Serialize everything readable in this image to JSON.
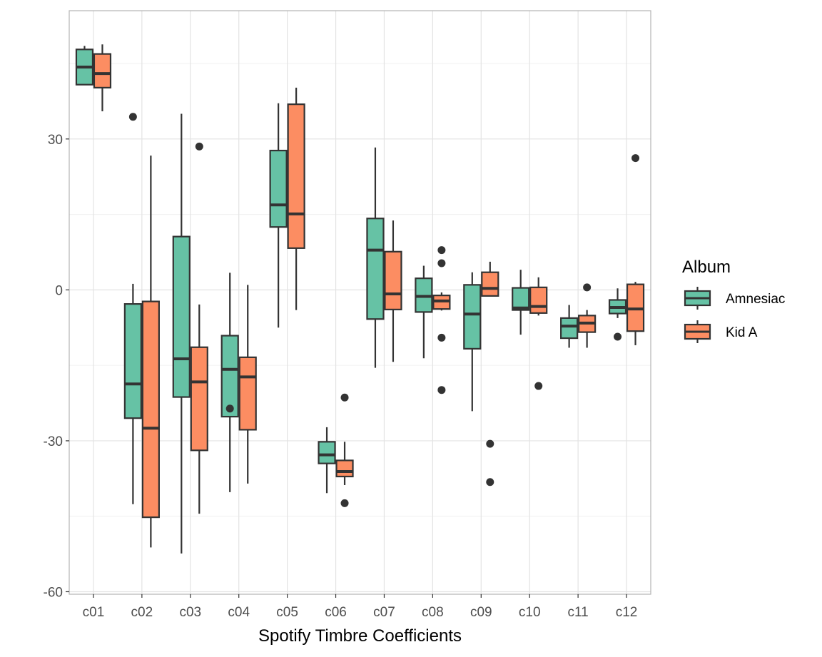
{
  "chart_data": {
    "type": "boxplot",
    "title": "",
    "xlabel": "Spotify Timbre Coefficients",
    "ylabel": "",
    "categories": [
      "c01",
      "c02",
      "c03",
      "c04",
      "c05",
      "c06",
      "c07",
      "c08",
      "c09",
      "c10",
      "c11",
      "c12"
    ],
    "yticks": [
      30,
      0,
      -30,
      -60
    ],
    "ytick_labels": [
      "30",
      "0",
      "-30",
      "-60"
    ],
    "ylim": [
      -60.5,
      55.5
    ],
    "grid": true,
    "legend": {
      "title": "Album",
      "position": "right"
    },
    "series": [
      {
        "name": "Amnesiac",
        "color": "#66c2a5",
        "boxes": [
          {
            "whisker_low": 40.8,
            "q1": 40.8,
            "median": 44.3,
            "q3": 47.8,
            "whisker_high": 48.5,
            "outliers": []
          },
          {
            "whisker_low": -42.6,
            "q1": -25.5,
            "median": -18.7,
            "q3": -2.8,
            "whisker_high": 1.2,
            "outliers": [
              34.4
            ]
          },
          {
            "whisker_low": -52.4,
            "q1": -21.3,
            "median": -13.7,
            "q3": 10.6,
            "whisker_high": 35.0,
            "outliers": []
          },
          {
            "whisker_low": -40.2,
            "q1": -25.2,
            "median": -15.8,
            "q3": -9.1,
            "whisker_high": 3.4,
            "outliers": [
              -23.6
            ]
          },
          {
            "whisker_low": -7.5,
            "q1": 12.5,
            "median": 16.9,
            "q3": 27.7,
            "whisker_high": 37.1,
            "outliers": []
          },
          {
            "whisker_low": -40.4,
            "q1": -34.5,
            "median": -32.8,
            "q3": -30.2,
            "whisker_high": -27.3,
            "outliers": []
          },
          {
            "whisker_low": -15.5,
            "q1": -5.8,
            "median": 7.9,
            "q3": 14.2,
            "whisker_high": 28.3,
            "outliers": []
          },
          {
            "whisker_low": -13.6,
            "q1": -4.4,
            "median": -1.3,
            "q3": 2.3,
            "whisker_high": 4.8,
            "outliers": []
          },
          {
            "whisker_low": -24.1,
            "q1": -11.7,
            "median": -4.8,
            "q3": 1.0,
            "whisker_high": 3.5,
            "outliers": []
          },
          {
            "whisker_low": -8.9,
            "q1": -4.0,
            "median": -3.6,
            "q3": 0.4,
            "whisker_high": 4.0,
            "outliers": []
          },
          {
            "whisker_low": -11.5,
            "q1": -9.6,
            "median": -7.2,
            "q3": -5.6,
            "whisker_high": -3.0,
            "outliers": []
          },
          {
            "whisker_low": -5.6,
            "q1": -4.7,
            "median": -3.5,
            "q3": -2.0,
            "whisker_high": 0.3,
            "outliers": [
              -9.3
            ]
          }
        ]
      },
      {
        "name": "Kid A",
        "color": "#fc8d62",
        "boxes": [
          {
            "whisker_low": 35.5,
            "q1": 40.2,
            "median": 43.0,
            "q3": 46.9,
            "whisker_high": 48.8,
            "outliers": []
          },
          {
            "whisker_low": -51.2,
            "q1": -45.2,
            "median": -27.5,
            "q3": -2.3,
            "whisker_high": 26.7,
            "outliers": []
          },
          {
            "whisker_low": -44.5,
            "q1": -31.9,
            "median": -18.3,
            "q3": -11.4,
            "whisker_high": -2.9,
            "outliers": [
              28.5
            ]
          },
          {
            "whisker_low": -38.5,
            "q1": -27.8,
            "median": -17.3,
            "q3": -13.4,
            "whisker_high": 1.0,
            "outliers": []
          },
          {
            "whisker_low": -4.0,
            "q1": 8.3,
            "median": 15.1,
            "q3": 36.9,
            "whisker_high": 40.2,
            "outliers": []
          },
          {
            "whisker_low": -38.8,
            "q1": -37.1,
            "median": -36.1,
            "q3": -33.9,
            "whisker_high": -30.2,
            "outliers": [
              -21.4,
              -42.4
            ]
          },
          {
            "whisker_low": -14.3,
            "q1": -3.9,
            "median": -0.8,
            "q3": 7.6,
            "whisker_high": 13.8,
            "outliers": []
          },
          {
            "whisker_low": -4.1,
            "q1": -3.8,
            "median": -2.2,
            "q3": -1.1,
            "whisker_high": -0.5,
            "outliers": [
              7.9,
              5.3,
              -9.5,
              -19.9
            ]
          },
          {
            "whisker_low": -1.2,
            "q1": -1.2,
            "median": 0.3,
            "q3": 3.5,
            "whisker_high": 5.6,
            "outliers": [
              -30.6,
              -38.2
            ]
          },
          {
            "whisker_low": -5.1,
            "q1": -4.6,
            "median": -3.3,
            "q3": 0.5,
            "whisker_high": 2.5,
            "outliers": [
              -19.1
            ]
          },
          {
            "whisker_low": -11.5,
            "q1": -8.4,
            "median": -6.6,
            "q3": -5.1,
            "whisker_high": -4.0,
            "outliers": [
              0.5
            ]
          },
          {
            "whisker_low": -11.0,
            "q1": -8.2,
            "median": -3.8,
            "q3": 1.1,
            "whisker_high": 1.6,
            "outliers": [
              26.2
            ]
          }
        ]
      }
    ]
  }
}
